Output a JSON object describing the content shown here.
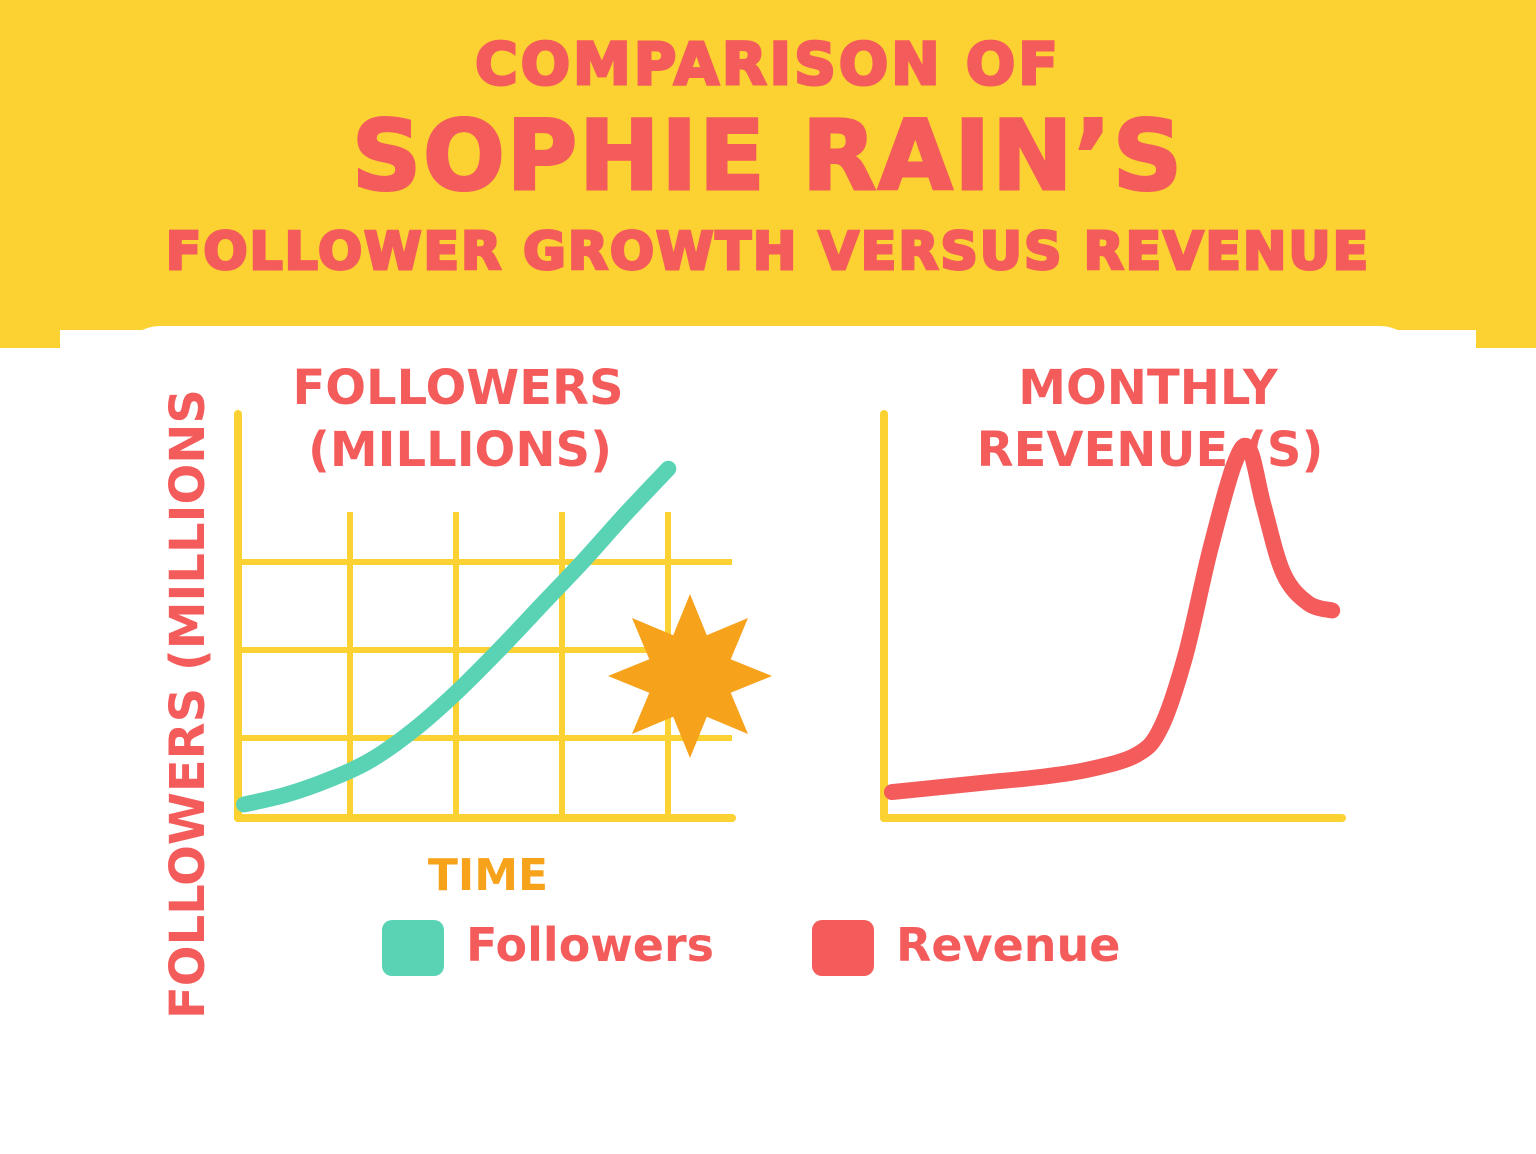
{
  "title": {
    "line1": "COMPARISON OF",
    "line2": "SOPHIE RAIN’S",
    "line3": "FOLLOWER GROWTH VERSUS REVENUE"
  },
  "colors": {
    "banner": "#fcd232",
    "title": "#f45b5b",
    "followers": "#5ad3b5",
    "revenue": "#f45b5b",
    "axis": "#fcd232",
    "time_label": "#f7a21b",
    "starburst": "#f7a21b"
  },
  "legend": [
    {
      "name": "Followers",
      "color": "#5ad3b5"
    },
    {
      "name": "Revenue",
      "color": "#f45b5b"
    }
  ],
  "chart_data": [
    {
      "type": "line",
      "title_lines": [
        "FOLLOWERS",
        "(MILLIONS)"
      ],
      "ylabel": "FOLLOWERS (MILLIONS",
      "xlabel": "TIME",
      "grid": true,
      "annotation_icon": "starburst-icon",
      "x": [
        0,
        1,
        2,
        3,
        4,
        5,
        6,
        7,
        8,
        9,
        10
      ],
      "series": [
        {
          "name": "Followers",
          "values": [
            0.3,
            0.7,
            1.3,
            2.1,
            3.3,
            4.8,
            6.5,
            8.3,
            10.1,
            12.0,
            13.8
          ]
        }
      ],
      "xlim": [
        0,
        11.5
      ],
      "ylim": [
        0,
        16
      ]
    },
    {
      "type": "line",
      "title_lines": [
        "MONTHLY",
        "REVENUE (S)"
      ],
      "grid": false,
      "x": [
        0,
        1,
        2,
        3,
        4,
        5,
        5.5,
        6,
        6.5,
        7,
        7.3,
        7.6,
        8,
        8.5,
        9
      ],
      "series": [
        {
          "name": "Revenue",
          "values": [
            0.8,
            1.0,
            1.2,
            1.4,
            1.7,
            2.3,
            3.4,
            6.3,
            10.5,
            14.0,
            14.6,
            12.3,
            9.6,
            8.4,
            8.1
          ]
        }
      ],
      "xlim": [
        0,
        9.2
      ],
      "ylim": [
        0,
        16
      ]
    }
  ]
}
